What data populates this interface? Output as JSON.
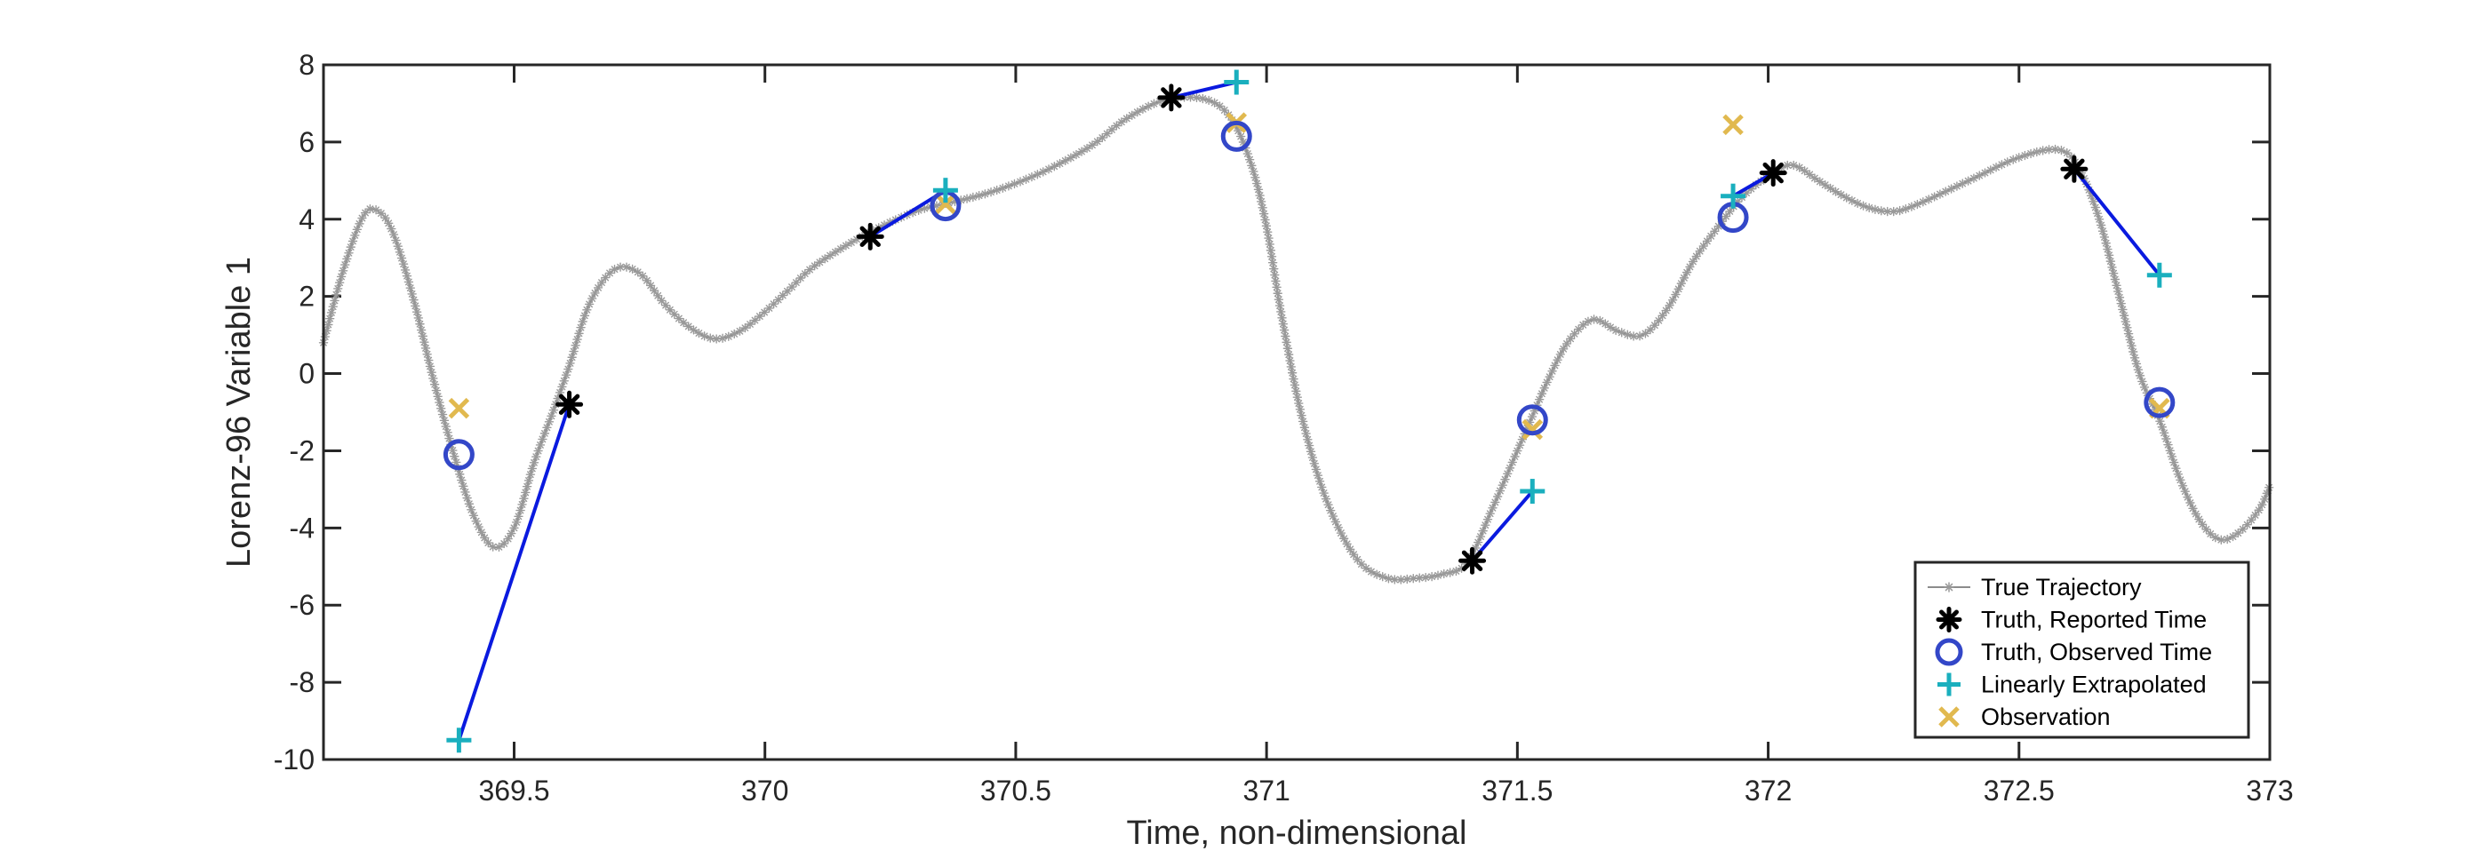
{
  "chart_data": {
    "type": "line",
    "xlabel": "Time, non-dimensional",
    "ylabel": "Lorenz-96 Variable 1",
    "xlim": [
      369.12,
      373
    ],
    "ylim": [
      -10,
      8
    ],
    "x_ticks": [
      369.5,
      370,
      370.5,
      371,
      371.5,
      372,
      372.5,
      373
    ],
    "x_tick_labels": [
      "369.5",
      "370",
      "370.5",
      "371",
      "371.5",
      "372",
      "372.5",
      "373"
    ],
    "y_ticks": [
      -10,
      -8,
      -6,
      -4,
      -2,
      0,
      2,
      4,
      6,
      8
    ],
    "y_tick_labels": [
      "-10",
      "-8",
      "-6",
      "-4",
      "-2",
      "0",
      "2",
      "4",
      "6",
      "8"
    ],
    "grid": false,
    "legend_position": "bottom-right",
    "series": [
      {
        "name": "True Trajectory",
        "style": "line-with-star-markers",
        "color": "#8c8c8c",
        "x": [
          369.12,
          369.16,
          369.2,
          369.23,
          369.26,
          369.3,
          369.34,
          369.38,
          369.42,
          369.46,
          369.5,
          369.54,
          369.58,
          369.61,
          369.65,
          369.7,
          369.75,
          369.8,
          369.85,
          369.9,
          369.95,
          370.0,
          370.05,
          370.1,
          370.2,
          370.3,
          370.36,
          370.45,
          370.55,
          370.65,
          370.72,
          370.8,
          370.88,
          370.93,
          370.97,
          371.0,
          371.03,
          371.07,
          371.12,
          371.18,
          371.24,
          371.3,
          371.35,
          371.4,
          371.45,
          371.5,
          371.53,
          371.56,
          371.6,
          371.65,
          371.7,
          371.75,
          371.8,
          371.85,
          371.9,
          371.95,
          372.01,
          372.05,
          372.1,
          372.15,
          372.2,
          372.25,
          372.3,
          372.4,
          372.5,
          372.58,
          372.62,
          372.66,
          372.7,
          372.74,
          372.78,
          372.82,
          372.86,
          372.9,
          372.94,
          372.98,
          373.0
        ],
        "y": [
          0.8,
          2.7,
          4.1,
          4.2,
          3.6,
          1.9,
          -0.2,
          -2.1,
          -3.7,
          -4.5,
          -4.0,
          -2.3,
          -0.9,
          0.2,
          1.8,
          2.7,
          2.6,
          1.8,
          1.2,
          0.9,
          1.1,
          1.6,
          2.2,
          2.8,
          3.6,
          4.2,
          4.4,
          4.7,
          5.2,
          5.9,
          6.6,
          7.1,
          7.1,
          6.6,
          5.4,
          3.8,
          1.5,
          -1.1,
          -3.3,
          -4.8,
          -5.3,
          -5.3,
          -5.2,
          -4.9,
          -3.5,
          -2.0,
          -1.1,
          -0.2,
          0.8,
          1.4,
          1.1,
          1.0,
          1.7,
          2.9,
          3.8,
          4.6,
          5.2,
          5.4,
          5.0,
          4.6,
          4.3,
          4.2,
          4.4,
          5.0,
          5.6,
          5.8,
          5.3,
          4.0,
          2.0,
          0.0,
          -1.2,
          -2.7,
          -3.8,
          -4.3,
          -4.1,
          -3.5,
          -2.9
        ]
      },
      {
        "name": "Truth, Reported Time",
        "style": "black-star",
        "color": "#000000",
        "x": [
          369.61,
          370.21,
          370.81,
          371.41,
          372.01,
          372.61
        ],
        "y": [
          -0.8,
          3.55,
          7.15,
          -4.85,
          5.2,
          5.3
        ]
      },
      {
        "name": "Truth, Observed Time",
        "style": "open-circle",
        "color": "#3347c8",
        "x": [
          369.39,
          370.36,
          370.94,
          371.53,
          371.93,
          372.78
        ],
        "y": [
          -2.1,
          4.35,
          6.15,
          -1.2,
          4.05,
          -0.75
        ]
      },
      {
        "name": "Linearly Extrapolated",
        "style": "plus",
        "color": "#1aafbe",
        "x": [
          369.39,
          370.36,
          370.94,
          371.53,
          371.93,
          372.78
        ],
        "y": [
          -9.5,
          4.75,
          7.55,
          -3.05,
          4.6,
          2.55
        ]
      },
      {
        "name": "Observation",
        "style": "x",
        "color": "#e1b94f",
        "x": [
          369.39,
          370.36,
          370.94,
          371.53,
          371.93,
          372.78
        ],
        "y": [
          -0.9,
          4.4,
          6.5,
          -1.45,
          6.45,
          -0.9
        ]
      }
    ],
    "extrapolation_line_color": "#0a1adf"
  }
}
